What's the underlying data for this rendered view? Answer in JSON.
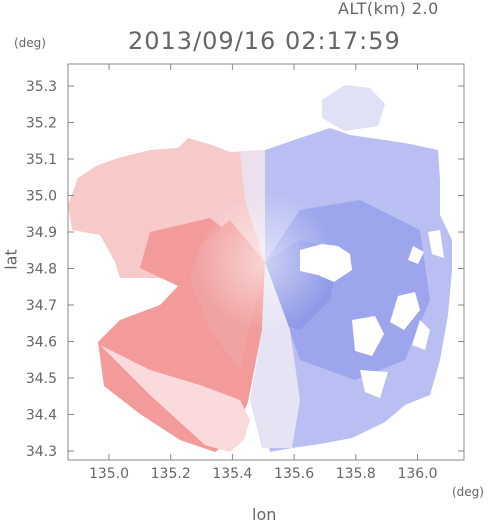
{
  "header": {
    "altitude": "ALT(km) 2.0",
    "timestamp": "2013/09/16 02:17:59"
  },
  "axes": {
    "y_unit": "(deg)",
    "x_unit": "(deg)",
    "y_label": "lat",
    "x_label": "lon",
    "y_ticks": [
      "35.3",
      "35.2",
      "35.1",
      "35.0",
      "34.9",
      "34.8",
      "34.7",
      "34.6",
      "34.5",
      "34.4",
      "34.3"
    ],
    "x_ticks": [
      "135.0",
      "135.2",
      "135.4",
      "135.6",
      "135.8",
      "136.0"
    ]
  },
  "colors": {
    "approaching": "#5b6ee0",
    "receding": "#f07070",
    "frame": "#888888",
    "text": "#666666"
  }
}
